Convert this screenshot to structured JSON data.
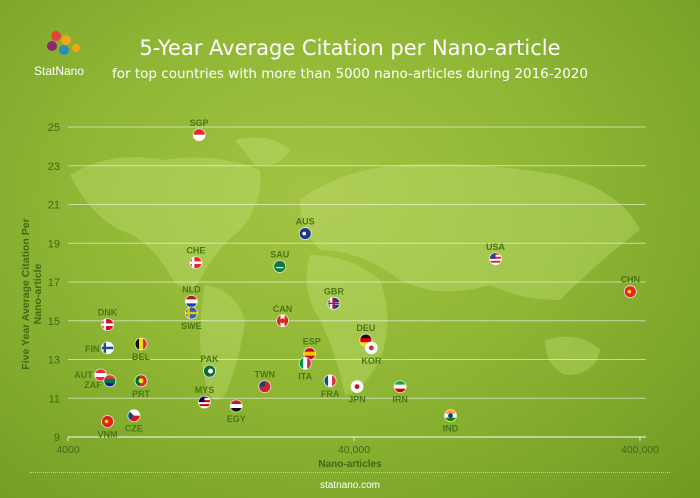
{
  "brand": {
    "name": "StatNano",
    "footer": "statnano.com"
  },
  "chart_data": {
    "type": "scatter",
    "title": "5-Year Average Citation per Nano-article",
    "subtitle": "for top countries with more than 5000 nano-articles during 2016-2020",
    "xlabel": "Nano-articles",
    "ylabel": "Five Year Average Citation Per Nano-article",
    "x_scale": "log",
    "xlim": [
      4000,
      400000
    ],
    "ylim": [
      9,
      25
    ],
    "x_ticks": [
      "4000",
      "40,000",
      "400,000"
    ],
    "y_ticks": [
      9,
      11,
      13,
      15,
      17,
      19,
      21,
      23,
      25
    ],
    "grid": "horizontal",
    "points": [
      {
        "label": "SGP",
        "x": 11500,
        "y": 24.6,
        "flag": "SGP"
      },
      {
        "label": "AUS",
        "x": 27000,
        "y": 19.5,
        "flag": "AUS"
      },
      {
        "label": "CHE",
        "x": 11200,
        "y": 18.0,
        "flag": "CHE"
      },
      {
        "label": "SAU",
        "x": 22000,
        "y": 17.8,
        "flag": "SAU"
      },
      {
        "label": "USA",
        "x": 125000,
        "y": 18.2,
        "flag": "USA"
      },
      {
        "label": "CHN",
        "x": 370000,
        "y": 16.5,
        "flag": "CHN"
      },
      {
        "label": "NLD",
        "x": 10800,
        "y": 16.0,
        "flag": "NLD"
      },
      {
        "label": "SWE",
        "x": 10800,
        "y": 15.4,
        "flag": "SWE"
      },
      {
        "label": "GBR",
        "x": 34000,
        "y": 15.9,
        "flag": "GBR"
      },
      {
        "label": "CAN",
        "x": 22500,
        "y": 15.0,
        "flag": "CAN"
      },
      {
        "label": "DNK",
        "x": 5500,
        "y": 14.8,
        "flag": "DNK"
      },
      {
        "label": "FIN",
        "x": 5500,
        "y": 13.6,
        "flag": "FIN"
      },
      {
        "label": "BEL",
        "x": 7200,
        "y": 13.8,
        "flag": "BEL"
      },
      {
        "label": "DEU",
        "x": 44000,
        "y": 14.0,
        "flag": "DEU"
      },
      {
        "label": "KOR",
        "x": 46000,
        "y": 13.6,
        "flag": "KOR"
      },
      {
        "label": "ESP",
        "x": 28000,
        "y": 13.3,
        "flag": "ESP"
      },
      {
        "label": "ITA",
        "x": 27000,
        "y": 12.8,
        "flag": "ITA"
      },
      {
        "label": "PAK",
        "x": 12500,
        "y": 12.4,
        "flag": "PAK"
      },
      {
        "label": "AUT",
        "x": 5200,
        "y": 12.2,
        "flag": "AUT"
      },
      {
        "label": "ZAF",
        "x": 5600,
        "y": 11.9,
        "flag": "ZAF"
      },
      {
        "label": "PRT",
        "x": 7200,
        "y": 11.9,
        "flag": "PRT"
      },
      {
        "label": "TWN",
        "x": 19500,
        "y": 11.6,
        "flag": "TWN"
      },
      {
        "label": "FRA",
        "x": 33000,
        "y": 11.9,
        "flag": "FRA"
      },
      {
        "label": "JPN",
        "x": 41000,
        "y": 11.6,
        "flag": "JPN"
      },
      {
        "label": "IRN",
        "x": 58000,
        "y": 11.6,
        "flag": "IRN"
      },
      {
        "label": "MYS",
        "x": 12000,
        "y": 10.8,
        "flag": "MYS"
      },
      {
        "label": "EGY",
        "x": 15500,
        "y": 10.6,
        "flag": "EGY"
      },
      {
        "label": "VNM",
        "x": 5500,
        "y": 9.8,
        "flag": "VNM"
      },
      {
        "label": "CZE",
        "x": 6800,
        "y": 10.1,
        "flag": "CZE"
      },
      {
        "label": "IND",
        "x": 87000,
        "y": 10.1,
        "flag": "IND"
      }
    ]
  },
  "colors": {
    "axis_text": "#3d6a12",
    "label_text": "#4a7816"
  }
}
